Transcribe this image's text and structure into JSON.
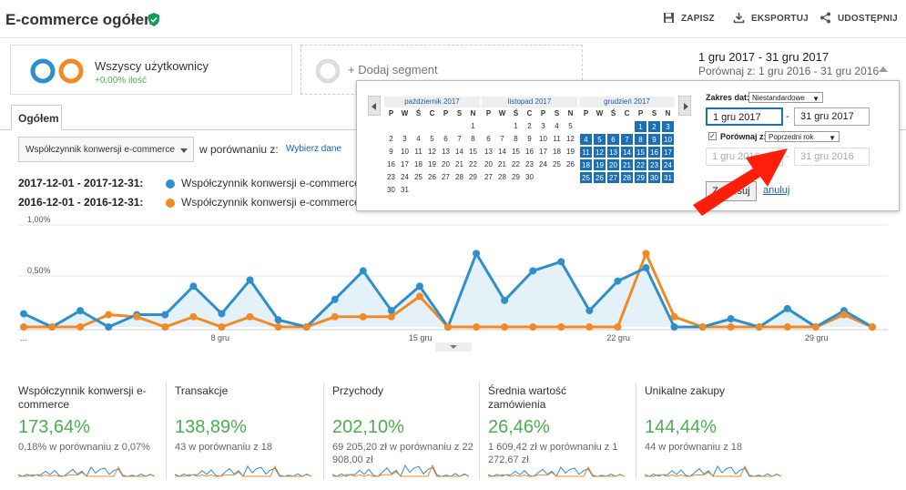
{
  "header": {
    "title": "E-commerce ogółem",
    "save_label": "ZAPISZ",
    "export_label": "EKSPORTUJ",
    "share_label": "UDOSTĘPNIJ"
  },
  "segments": {
    "all_users": "Wszyscy użytkownicy",
    "all_users_sub": "+0,00% ilość",
    "add_segment": "+ Dodaj segment"
  },
  "date_range": {
    "main": "1 gru 2017 - 31 gru 2017",
    "compare": "Porównaj z: 1 gru 2016 - 31 gru 2016"
  },
  "tabs": {
    "overview": "Ogółem"
  },
  "metric_select": {
    "value": "Współczynnik konwersji e-commerce",
    "compare_label": "w porównaniu z:",
    "choose_link": "Wybierz dane"
  },
  "legend": [
    {
      "date": "2017-12-01 - 2017-12-31:",
      "name": "Współczynnik konwersji e-commerce",
      "color": "#2d8fcc"
    },
    {
      "date": "2016-12-01 - 2016-12-31:",
      "name": "Współczynnik konwersji e-commerce",
      "color": "#f08a24"
    }
  ],
  "chart_data": {
    "type": "line",
    "y_ticks": [
      "1,00%",
      "0,50%"
    ],
    "x_ticks": [
      "...",
      "8 gru",
      "15 gru",
      "22 gru",
      "29 gru"
    ],
    "x": [
      1,
      2,
      3,
      4,
      5,
      6,
      7,
      8,
      9,
      10,
      11,
      12,
      13,
      14,
      15,
      16,
      17,
      18,
      19,
      20,
      21,
      22,
      23,
      24,
      25,
      26,
      27,
      28,
      29,
      30,
      31
    ],
    "ylim": [
      0,
      1.0
    ],
    "series": [
      {
        "name": "2017-12-01 - 2017-12-31",
        "color": "#2d8fcc",
        "values": [
          0.13,
          0.0,
          0.16,
          0.0,
          0.12,
          0.12,
          0.4,
          0.13,
          0.46,
          0.07,
          0.0,
          0.27,
          0.55,
          0.16,
          0.4,
          0.0,
          0.72,
          0.26,
          0.55,
          0.64,
          0.16,
          0.45,
          0.58,
          0.0,
          0.0,
          0.08,
          0.0,
          0.18,
          0.0,
          0.16,
          0.0
        ]
      },
      {
        "name": "2016-12-01 - 2016-12-31",
        "color": "#f08a24",
        "values": [
          0.0,
          0.0,
          0.0,
          0.12,
          0.1,
          0.0,
          0.1,
          0.0,
          0.1,
          0.0,
          0.0,
          0.1,
          0.1,
          0.1,
          0.3,
          0.0,
          0.0,
          0.0,
          0.0,
          0.0,
          0.0,
          0.0,
          0.72,
          0.1,
          0.0,
          0.0,
          0.0,
          0.0,
          0.0,
          0.12,
          0.0
        ]
      }
    ]
  },
  "cards": [
    {
      "title": "Współczynnik konwersji e-commerce",
      "value": "173,64%",
      "sub": "0,18% w porównaniu z 0,07%"
    },
    {
      "title": "Transakcje",
      "value": "138,89%",
      "sub": "43 w porównaniu z 18"
    },
    {
      "title": "Przychody",
      "value": "202,10%",
      "sub": "69 205,20 zł w porównaniu z 22 908,00 zł"
    },
    {
      "title": "Średnia wartość zamówienia",
      "value": "26,46%",
      "sub": "1 609,42 zł w porównaniu z 1 272,67 zł"
    },
    {
      "title": "Unikalne zakupy",
      "value": "144,44%",
      "sub": "44 w porównaniu z 18"
    }
  ],
  "datepicker": {
    "months": [
      {
        "title": "październik 2017",
        "offset": 6,
        "days": 31,
        "selected_from": 0
      },
      {
        "title": "listopad 2017",
        "offset": 2,
        "days": 30,
        "selected_from": 0
      },
      {
        "title": "grudzień 2017",
        "offset": 4,
        "days": 31,
        "selected_from": 1
      }
    ],
    "weekdays": [
      "P",
      "W",
      "Ś",
      "C",
      "P",
      "S",
      "N"
    ],
    "range_label": "Zakres dat:",
    "range_option": "Niestandardowe",
    "start": "1 gru 2017",
    "end": "31 gru 2017",
    "dash": "-",
    "compare_label": "Porównaj z:",
    "compare_option": "Poprzedni rok",
    "compare_start": "1 gru 2016",
    "compare_end": "31 gru 2016",
    "apply_label": "Zastosuj",
    "cancel_label": "anuluj"
  }
}
